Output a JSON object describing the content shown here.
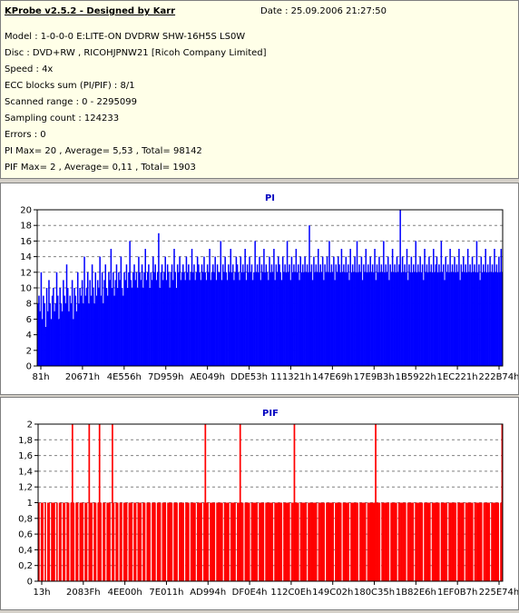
{
  "info": {
    "title": "KProbe v2.5.2 - Designed by Karr",
    "date": "Date : 25.09.2006 21:27:50",
    "lines": [
      "Model : 1-0-0-0 E:LITE-ON DVDRW SHW-16H5S  LS0W",
      "Disc : DVD+RW , RICOHJPNW21 [Ricoh Company Limited]",
      "Speed : 4x",
      "ECC blocks sum (PI/PIF) : 8/1",
      "Scanned range : 0 - 2295099",
      "Sampling count : 124233",
      "Errors : 0",
      "PI Max= 20 , Average= 5,53 , Total= 98142",
      "PIF Max= 2 , Average= 0,11 , Total= 1903"
    ]
  },
  "colors": {
    "pi": "#0000ff",
    "pif": "#ff0000",
    "title": "#0000c0"
  },
  "chart_data": [
    {
      "type": "bar",
      "title": "PI",
      "ylim": [
        0,
        20
      ],
      "yticks": [
        "0",
        "2",
        "4",
        "6",
        "8",
        "10",
        "12",
        "14",
        "16",
        "18",
        "20"
      ],
      "xticks": [
        "81h",
        "20671h",
        "4E556h",
        "7D959h",
        "AE049h",
        "DDE53h",
        "111321h",
        "147E69h",
        "17E9B3h",
        "1B5922h",
        "1EC221h",
        "222B74h"
      ],
      "grid": true,
      "series": [
        {
          "values": [
            8,
            9,
            7,
            12,
            6,
            9,
            8,
            5,
            10,
            7,
            11,
            8,
            6,
            9,
            10,
            7,
            8,
            12,
            9,
            6,
            10,
            8,
            7,
            11,
            9,
            8,
            13,
            10,
            7,
            9,
            8,
            11,
            6,
            10,
            9,
            7,
            12,
            8,
            10,
            9,
            11,
            8,
            14,
            9,
            10,
            12,
            8,
            11,
            9,
            13,
            10,
            8,
            12,
            9,
            11,
            10,
            14,
            9,
            12,
            8,
            11,
            13,
            10,
            9,
            12,
            11,
            15,
            10,
            12,
            9,
            11,
            13,
            10,
            12,
            11,
            14,
            10,
            9,
            12,
            11,
            13,
            10,
            12,
            16,
            11,
            10,
            12,
            13,
            11,
            12,
            10,
            14,
            12,
            11,
            13,
            10,
            12,
            15,
            11,
            12,
            13,
            10,
            12,
            11,
            14,
            12,
            13,
            11,
            12,
            17,
            10,
            12,
            13,
            11,
            12,
            14,
            11,
            13,
            12,
            10,
            12,
            13,
            11,
            15,
            12,
            10,
            13,
            12,
            14,
            11,
            12,
            13,
            12,
            11,
            14,
            12,
            13,
            11,
            12,
            15,
            12,
            13,
            11,
            12,
            14,
            13,
            12,
            11,
            13,
            12,
            14,
            12,
            11,
            13,
            12,
            15,
            11,
            12,
            13,
            12,
            14,
            11,
            13,
            12,
            12,
            16,
            11,
            13,
            12,
            14,
            12,
            11,
            13,
            12,
            15,
            12,
            13,
            11,
            12,
            14,
            13,
            12,
            11,
            14,
            12,
            13,
            12,
            15,
            11,
            13,
            12,
            14,
            12,
            13,
            11,
            12,
            16,
            12,
            13,
            12,
            14,
            11,
            13,
            12,
            15,
            12,
            13,
            12,
            11,
            14,
            12,
            13,
            12,
            15,
            11,
            13,
            12,
            14,
            13,
            12,
            11,
            14,
            12,
            13,
            12,
            16,
            12,
            13,
            11,
            14,
            12,
            13,
            12,
            15,
            12,
            13,
            11,
            14,
            12,
            13,
            12,
            14,
            12,
            13,
            12,
            18,
            12,
            13,
            11,
            14,
            12,
            13,
            12,
            15,
            12,
            13,
            12,
            14,
            11,
            13,
            12,
            14,
            12,
            16,
            12,
            13,
            12,
            14,
            11,
            13,
            12,
            14,
            13,
            12,
            15,
            12,
            13,
            12,
            14,
            12,
            13,
            11,
            15,
            12,
            13,
            12,
            14,
            12,
            16,
            12,
            13,
            12,
            14,
            11,
            13,
            12,
            15,
            12,
            13,
            12,
            14,
            12,
            13,
            12,
            15,
            11,
            13,
            12,
            14,
            12,
            13,
            12,
            16,
            12,
            13,
            12,
            14,
            11,
            13,
            12,
            15,
            12,
            13,
            12,
            14,
            12,
            13,
            20,
            12,
            14,
            12,
            13,
            12,
            15,
            11,
            13,
            12,
            14,
            12,
            13,
            12,
            16,
            12,
            13,
            12,
            14,
            12,
            13,
            11,
            15,
            12,
            13,
            12,
            14,
            12,
            13,
            12,
            15,
            12,
            13,
            14,
            12,
            13,
            12,
            16,
            12,
            13,
            11,
            14,
            12,
            13,
            12,
            15,
            12,
            13,
            12,
            14,
            12,
            13,
            12,
            15,
            11,
            13,
            12,
            14,
            12,
            13,
            12,
            15,
            12,
            13,
            12,
            14,
            12,
            13,
            12,
            16,
            12,
            13,
            11,
            14,
            12,
            13,
            12,
            15,
            12,
            13,
            12,
            14,
            12,
            13,
            12,
            15,
            12,
            13,
            12,
            14,
            12,
            15,
            12
          ]
        }
      ]
    },
    {
      "type": "bar",
      "title": "PIF",
      "ylim": [
        0,
        2
      ],
      "yticks": [
        "0",
        "0,2",
        "0,4",
        "0,6",
        "0,8",
        "1",
        "1,2",
        "1,4",
        "1,6",
        "1,8",
        "2"
      ],
      "xticks": [
        "13h",
        "2083Fh",
        "4EE00h",
        "7E011h",
        "AD994h",
        "DF0E4h",
        "112C0Eh",
        "149C02h",
        "180C35h",
        "1B82E6h",
        "1EF0B7h",
        "225E74h"
      ],
      "grid": true,
      "series": [
        {
          "values": [
            1,
            0,
            1,
            1,
            0,
            1,
            0,
            1,
            1,
            0,
            1,
            1,
            1,
            0,
            1,
            0,
            1,
            1,
            0,
            1,
            1,
            0,
            1,
            1,
            0,
            1,
            2,
            1,
            0,
            1,
            1,
            0,
            1,
            1,
            1,
            0,
            1,
            1,
            0,
            2,
            1,
            1,
            0,
            1,
            1,
            0,
            1,
            2,
            1,
            0,
            1,
            1,
            0,
            1,
            1,
            1,
            0,
            2,
            1,
            0,
            1,
            1,
            0,
            1,
            1,
            0,
            1,
            1,
            1,
            0,
            1,
            1,
            1,
            0,
            1,
            1,
            0,
            1,
            1,
            1,
            0,
            1,
            1,
            0,
            1,
            1,
            1,
            0,
            1,
            1,
            1,
            0,
            1,
            1,
            1,
            0,
            1,
            1,
            1,
            0,
            1,
            1,
            1,
            1,
            0,
            1,
            1,
            1,
            0,
            1,
            1,
            1,
            1,
            0,
            1,
            1,
            1,
            0,
            1,
            1,
            1,
            1,
            0,
            1,
            1,
            1,
            1,
            0,
            1,
            2,
            1,
            1,
            0,
            1,
            1,
            1,
            1,
            0,
            1,
            1,
            1,
            1,
            1,
            0,
            1,
            1,
            1,
            1,
            0,
            1,
            1,
            1,
            1,
            0,
            1,
            1,
            2,
            1,
            1,
            0,
            1,
            1,
            1,
            1,
            0,
            1,
            1,
            1,
            1,
            1,
            0,
            1,
            1,
            1,
            1,
            0,
            1,
            1,
            1,
            1,
            1,
            1,
            0,
            1,
            1,
            1,
            1,
            1,
            1,
            0,
            1,
            1,
            1,
            1,
            1,
            0,
            1,
            1,
            2,
            1,
            1,
            1,
            0,
            1,
            1,
            1,
            1,
            1,
            0,
            1,
            1,
            1,
            1,
            1,
            1,
            1,
            0,
            1,
            1,
            1,
            1,
            1,
            0,
            1,
            1,
            1,
            1,
            1,
            1,
            0,
            1,
            1,
            1,
            1,
            1,
            0,
            1,
            1,
            1,
            1,
            1,
            0,
            1,
            1,
            1,
            1,
            1,
            1,
            0,
            1,
            1,
            1,
            1,
            1,
            0,
            1,
            1,
            1,
            1,
            1,
            1,
            2,
            1,
            1,
            1,
            0,
            1,
            1,
            1,
            1,
            1,
            1,
            0,
            1,
            1,
            1,
            1,
            1,
            0,
            1,
            1,
            1,
            1,
            1,
            1,
            0,
            1,
            1,
            1,
            1,
            1,
            0,
            1,
            1,
            1,
            1,
            1,
            1,
            0,
            1,
            1,
            1,
            1,
            1,
            0,
            1,
            1,
            1,
            1,
            1,
            1,
            0,
            1,
            1,
            1,
            1,
            1,
            0,
            1,
            1,
            1,
            1,
            1,
            1,
            0,
            1,
            1,
            1,
            1,
            1,
            0,
            1,
            1,
            1,
            1,
            1,
            1,
            0,
            1,
            1,
            1,
            1,
            1,
            1,
            0,
            1,
            1,
            1,
            1,
            1,
            0,
            1,
            1,
            1,
            1,
            1,
            1,
            0,
            1,
            2
          ]
        }
      ]
    }
  ]
}
